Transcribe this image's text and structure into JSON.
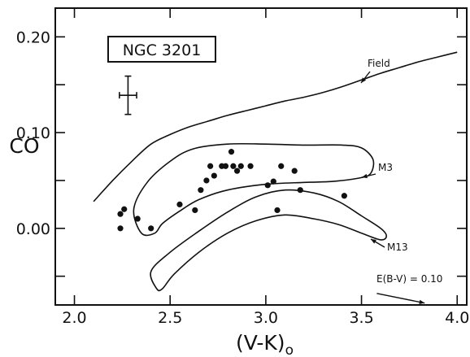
{
  "chart_data": {
    "type": "scatter",
    "title": "NGC 3201",
    "xlabel": "(V-K)",
    "xlabel_subscript": "o",
    "ylabel": "CO",
    "xlim": [
      1.9,
      4.05
    ],
    "ylim": [
      -0.08,
      0.23
    ],
    "x_ticks": [
      2.0,
      2.5,
      3.0,
      3.5,
      4.0
    ],
    "x_tick_labels": [
      "2.0",
      "2.5",
      "3.0",
      "3.5",
      "4.0"
    ],
    "y_ticks": [
      0.0,
      0.1,
      0.2
    ],
    "y_tick_labels": [
      "0.00",
      "0.10",
      "0.20"
    ],
    "x_minor_ticks": [
      2.0,
      2.5,
      3.0,
      3.5,
      4.0
    ],
    "y_minor_ticks": [
      -0.05,
      0.05,
      0.15
    ],
    "grid": false,
    "points": [
      {
        "x": 2.24,
        "y": 0.015
      },
      {
        "x": 2.26,
        "y": 0.02
      },
      {
        "x": 2.24,
        "y": 0.0
      },
      {
        "x": 2.33,
        "y": 0.01
      },
      {
        "x": 2.4,
        "y": 0.0
      },
      {
        "x": 2.55,
        "y": 0.025
      },
      {
        "x": 2.63,
        "y": 0.019
      },
      {
        "x": 2.66,
        "y": 0.04
      },
      {
        "x": 2.69,
        "y": 0.05
      },
      {
        "x": 2.71,
        "y": 0.065
      },
      {
        "x": 2.73,
        "y": 0.055
      },
      {
        "x": 2.77,
        "y": 0.065
      },
      {
        "x": 2.79,
        "y": 0.065
      },
      {
        "x": 2.82,
        "y": 0.08
      },
      {
        "x": 2.83,
        "y": 0.065
      },
      {
        "x": 2.85,
        "y": 0.06
      },
      {
        "x": 2.87,
        "y": 0.065
      },
      {
        "x": 2.92,
        "y": 0.065
      },
      {
        "x": 3.01,
        "y": 0.045
      },
      {
        "x": 3.04,
        "y": 0.049
      },
      {
        "x": 3.08,
        "y": 0.065
      },
      {
        "x": 3.15,
        "y": 0.06
      },
      {
        "x": 3.18,
        "y": 0.04
      },
      {
        "x": 3.06,
        "y": 0.019
      },
      {
        "x": 3.41,
        "y": 0.034
      }
    ],
    "error_bar": {
      "x": 2.28,
      "y": 0.139,
      "xerr": 0.045,
      "yerr": 0.02
    },
    "curves": [
      {
        "name": "Field",
        "closed": false,
        "points": [
          [
            2.1,
            0.028
          ],
          [
            2.2,
            0.05
          ],
          [
            2.3,
            0.07
          ],
          [
            2.4,
            0.088
          ],
          [
            2.5,
            0.098
          ],
          [
            2.6,
            0.106
          ],
          [
            2.7,
            0.112
          ],
          [
            2.8,
            0.118
          ],
          [
            2.9,
            0.123
          ],
          [
            3.0,
            0.128
          ],
          [
            3.1,
            0.133
          ],
          [
            3.2,
            0.137
          ],
          [
            3.3,
            0.142
          ],
          [
            3.4,
            0.148
          ],
          [
            3.5,
            0.155
          ],
          [
            3.6,
            0.162
          ],
          [
            3.7,
            0.168
          ],
          [
            3.8,
            0.174
          ],
          [
            3.9,
            0.179
          ],
          [
            4.0,
            0.184
          ]
        ]
      },
      {
        "name": "M3",
        "closed": true,
        "points": [
          [
            2.35,
            -0.005
          ],
          [
            2.31,
            0.02
          ],
          [
            2.38,
            0.048
          ],
          [
            2.5,
            0.07
          ],
          [
            2.62,
            0.083
          ],
          [
            2.8,
            0.088
          ],
          [
            3.0,
            0.088
          ],
          [
            3.2,
            0.087
          ],
          [
            3.4,
            0.087
          ],
          [
            3.5,
            0.084
          ],
          [
            3.56,
            0.072
          ],
          [
            3.55,
            0.058
          ],
          [
            3.5,
            0.053
          ],
          [
            3.35,
            0.049
          ],
          [
            3.2,
            0.048
          ],
          [
            3.0,
            0.046
          ],
          [
            2.8,
            0.04
          ],
          [
            2.65,
            0.03
          ],
          [
            2.55,
            0.018
          ],
          [
            2.46,
            0.005
          ],
          [
            2.42,
            -0.005
          ]
        ]
      },
      {
        "name": "M13",
        "closed": true,
        "points": [
          [
            2.43,
            -0.063
          ],
          [
            2.4,
            -0.045
          ],
          [
            2.5,
            -0.025
          ],
          [
            2.65,
            -0.003
          ],
          [
            2.8,
            0.017
          ],
          [
            2.95,
            0.033
          ],
          [
            3.1,
            0.04
          ],
          [
            3.25,
            0.037
          ],
          [
            3.38,
            0.028
          ],
          [
            3.5,
            0.013
          ],
          [
            3.6,
            0.0
          ],
          [
            3.63,
            -0.008
          ],
          [
            3.6,
            -0.012
          ],
          [
            3.5,
            -0.005
          ],
          [
            3.38,
            0.004
          ],
          [
            3.25,
            0.01
          ],
          [
            3.1,
            0.014
          ],
          [
            2.95,
            0.008
          ],
          [
            2.8,
            -0.005
          ],
          [
            2.65,
            -0.025
          ],
          [
            2.52,
            -0.048
          ],
          [
            2.46,
            -0.063
          ]
        ]
      }
    ],
    "annotations": {
      "field_label": "Field",
      "m3_label": "M3",
      "m13_label": "M13",
      "reddening_label": "E(B-V) = 0.10",
      "reddening_vector": {
        "x0": 3.58,
        "y0": -0.068,
        "x1": 3.83,
        "y1": -0.078
      }
    }
  }
}
